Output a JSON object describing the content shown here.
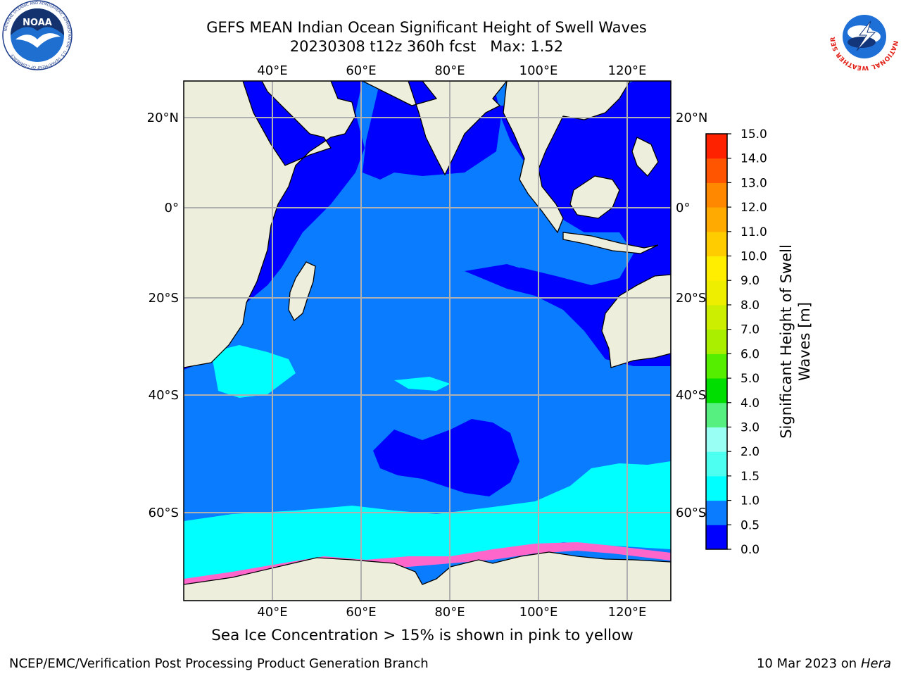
{
  "title": {
    "line1": "GEFS MEAN Indian Ocean Significant Height of Swell Waves",
    "line2": "20230308 t12z 360h fcst   Max: 1.52"
  },
  "map": {
    "lon_labels": [
      "40°E",
      "60°E",
      "80°E",
      "100°E",
      "120°E"
    ],
    "lat_labels": [
      "20°N",
      "0°",
      "20°S",
      "40°S",
      "60°S"
    ],
    "colors": {
      "land": "#eeeedd",
      "ocean_low": "#0000ff",
      "ocean_mid": "#0a7cff",
      "ocean_high": "#00ffff",
      "grid": "#b0b0b0"
    }
  },
  "colorbar": {
    "label_line1": "Significant Height of Swell",
    "label_line2": "Waves [m]",
    "ticks": [
      "0.0",
      "0.5",
      "1.0",
      "1.5",
      "2.0",
      "3.0",
      "4.0",
      "5.0",
      "6.0",
      "7.0",
      "8.0",
      "9.0",
      "10.0",
      "11.0",
      "12.0",
      "13.0",
      "14.0",
      "15.0"
    ],
    "colors": [
      "#0000ff",
      "#0a7cff",
      "#00ffff",
      "#4dfff0",
      "#99fff4",
      "#55f080",
      "#00dd00",
      "#55ee00",
      "#aaee00",
      "#ccee00",
      "#eeee00",
      "#ffee00",
      "#ffcc00",
      "#ffaa00",
      "#ff8800",
      "#ff5500",
      "#ff2200",
      "#ff0000"
    ]
  },
  "ice_note": "Sea Ice Concentration > 15% is shown in pink to yellow",
  "footer": {
    "left": "NCEP/EMC/Verification Post Processing Product Generation Branch",
    "right_date": "10 Mar 2023 on",
    "right_host": "Hera"
  },
  "logos": {
    "noaa_text": "NOAA",
    "noaa_ring": "NATIONAL OCEANIC AND ATMOSPHERIC ADMINISTRATION · U.S. DEPARTMENT OF COMMERCE",
    "nws_ring": "NATIONAL WEATHER SERVICE"
  }
}
